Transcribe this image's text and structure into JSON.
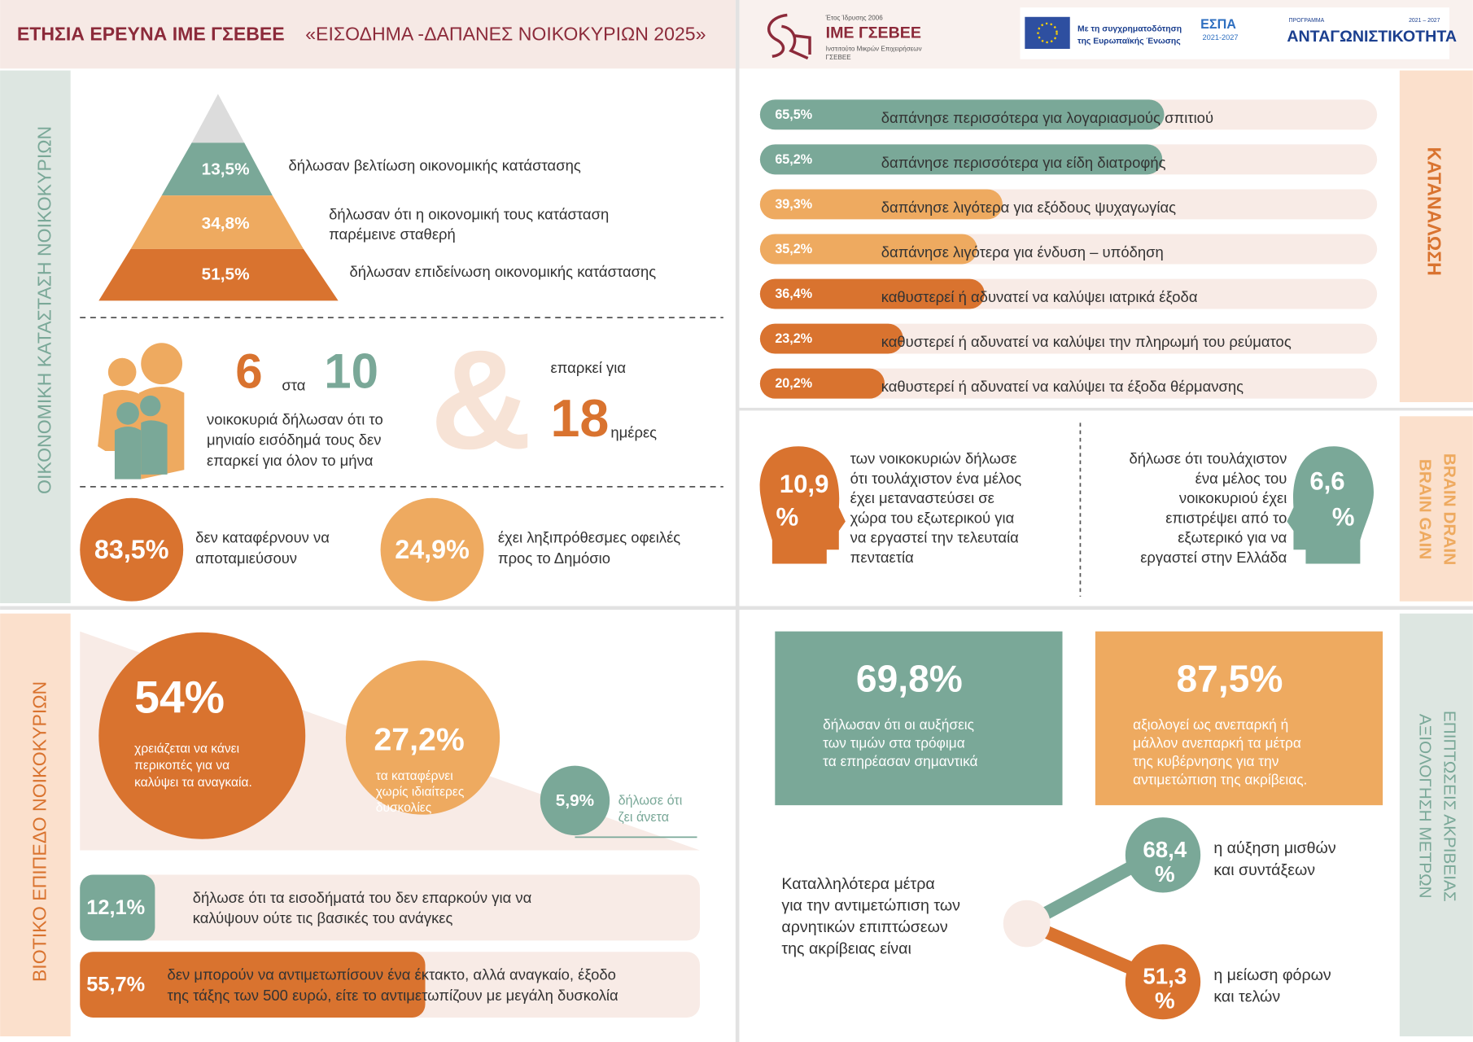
{
  "header": {
    "title": "ΕΤΗΣΙΑ ΕΡΕΥΝΑ ΙΜΕ ΓΣΕΒΕΕ",
    "subtitle": "«ΕΙΣΟΔΗΜΑ -ΔΑΠΑΝΕΣ ΝΟΙΚΟΚΥΡΙΩΝ 2025»",
    "logo_since": "Έτος Ίδρυσης 2006",
    "logo_name": "ΙΜΕ ΓΣΕΒΕΕ",
    "logo_sub": [
      "Ινστιτούτο Μικρών Επιχειρήσεων",
      "ΓΣΕΒΕΕ"
    ],
    "eu_text": [
      "Με τη συγχρηματοδότηση",
      "της Ευρωπαϊκής Ένωσης"
    ],
    "espa": "ΕΣΠΑ",
    "espa_years": "2021-2027",
    "program_label": "ΠΡΟΓΡΑΜΜΑ",
    "program_years": "2021 – 2027",
    "program": "ΑΝΤΑΓΩΝΙΣΤΙΚΟΤΗΤΑ"
  },
  "sections": {
    "financial": "ΟΙΚΟΝΟΜΙΚΗ ΚΑΤΑΣΤΑΣΗ ΝΟΙΚΟΚΥΡΙΩΝ",
    "consumption": "ΚΑΤΑΝΑΛΩΣΗ",
    "brain": [
      "BRAIN DRAIN",
      "BRAIN GAIN"
    ],
    "living": "ΒΙΟΤΙΚΟ ΕΠΙΠΕΔΟ ΝΟΙΚΟΚΥΡΙΩΝ",
    "measures": [
      "ΕΠΙΠΤΩΣΕΙΣ ΑΚΡΙΒΕΙΑΣ",
      "ΑΞΙΟΛΟΓΗΣΗ ΜΕΤΡΩΝ"
    ]
  },
  "pyramid": [
    {
      "value": "13,5%",
      "text": [
        "δήλωσαν βελτίωση οικονομικής κατάστασης"
      ]
    },
    {
      "value": "34,8%",
      "text": [
        "δήλωσαν ότι η οικονομική τους κατάσταση",
        "παρέμεινε σταθερή"
      ]
    },
    {
      "value": "51,5%",
      "text": [
        "δήλωσαν επιδείνωση οικονομικής κατάστασης"
      ]
    }
  ],
  "income": {
    "big1": "6",
    "word": "στα",
    "big2": "10",
    "text": [
      "νοικοκυριά δήλωσαν ότι το",
      "μηνιαίο εισόδημά τους δεν",
      "επαρκεί για όλον το μήνα"
    ],
    "amp": "&",
    "lasts": "επαρκεί για",
    "days": "18",
    "days_unit": "ημέρες"
  },
  "circles": [
    {
      "value": "83,5%",
      "text": [
        "δεν καταφέρνουν να",
        "αποταμιεύσουν"
      ]
    },
    {
      "value": "24,9%",
      "text": [
        "έχει ληξιπρόθεσμες οφειλές",
        "προς το Δημόσιο"
      ]
    }
  ],
  "consumption": [
    {
      "value": 65.5,
      "label": "65,5%",
      "text": "δαπάνησε περισσότερα για λογαριασμούς σπιτιού"
    },
    {
      "value": 65.2,
      "label": "65,2%",
      "text": "δαπάνησε περισσότερα για είδη διατροφής"
    },
    {
      "value": 39.3,
      "label": "39,3%",
      "text": "δαπάνησε λιγότερα για εξόδους ψυχαγωγίας"
    },
    {
      "value": 35.2,
      "label": "35,2%",
      "text": "δαπάνησε λιγότερα για ένδυση – υπόδηση"
    },
    {
      "value": 36.4,
      "label": "36,4%",
      "text": "καθυστερεί ή αδυνατεί να καλύψει ιατρικά έξοδα"
    },
    {
      "value": 23.2,
      "label": "23,2%",
      "text": "καθυστερεί ή αδυνατεί να καλύψει την πληρωμή του ρεύματος"
    },
    {
      "value": 20.2,
      "label": "20,2%",
      "text": "καθυστερεί ή αδυνατεί να καλύψει τα έξοδα θέρμανσης"
    }
  ],
  "migration": [
    {
      "value": [
        "10,9",
        "%"
      ],
      "text": [
        "των νοικοκυριών δήλωσε",
        "ότι τουλάχιστον ένα μέλος",
        "έχει μεταναστεύσει σε",
        "χώρα του εξωτερικού για",
        "να εργαστεί την τελευταία",
        "πενταετία"
      ]
    },
    {
      "value": [
        "6,6",
        "%"
      ],
      "text": [
        "δήλωσε ότι τουλάχιστον",
        "ένα μέλος του",
        "νοικοκυριού έχει",
        "επιστρέψει από το",
        "εξωτερικό για να",
        "εργαστεί στην Ελλάδα"
      ]
    }
  ],
  "living": [
    {
      "value": "54%",
      "text": [
        "χρειάζεται να κάνει",
        "περικοπές για να",
        "καλύψει τα αναγκαία."
      ]
    },
    {
      "value": "27,2%",
      "text": [
        "τα καταφέρνει",
        "χωρίς ιδιαίτερες",
        "δυσκολίες"
      ]
    },
    {
      "value": "5,9%",
      "text": [
        "δήλωσε ότι",
        "ζει άνετα"
      ]
    }
  ],
  "living_bars": [
    {
      "value": 12.1,
      "label": "12,1%",
      "text": [
        "δήλωσε ότι τα εισοδήματά του δεν επαρκούν για να",
        "καλύψουν ούτε τις βασικές του ανάγκες"
      ]
    },
    {
      "value": 55.7,
      "label": "55,7%",
      "text": [
        "δεν μπορούν να αντιμετωπίσουν ένα έκτακτο, αλλά αναγκαίο, έξοδο",
        "της τάξης των 500 ευρώ, είτε το αντιμετωπίζουν με μεγάλη δυσκολία"
      ]
    }
  ],
  "measures": {
    "cards": [
      {
        "value": "69,8%",
        "text": [
          "δήλωσαν ότι οι αυξήσεις",
          "των τιμών στα τρόφιμα",
          "τα επηρέασαν σημαντικά"
        ]
      },
      {
        "value": "87,5%",
        "text": [
          "αξιολογεί ως ανεπαρκή ή",
          "μάλλον ανεπαρκή τα μέτρα",
          "της κυβέρνησης για την",
          "αντιμετώπιση της ακρίβειας."
        ]
      }
    ],
    "question": [
      "Καταλληλότερα μέτρα",
      "για την αντιμετώπιση των",
      "αρνητικών επιπτώσεων",
      "της ακρίβειας είναι"
    ],
    "options": [
      {
        "value": [
          "68,4",
          "%"
        ],
        "text": [
          "η αύξηση μισθών",
          "και συντάξεων"
        ]
      },
      {
        "value": [
          "51,3",
          "%"
        ],
        "text": [
          "η μείωση φόρων",
          "και τελών"
        ]
      }
    ]
  }
}
